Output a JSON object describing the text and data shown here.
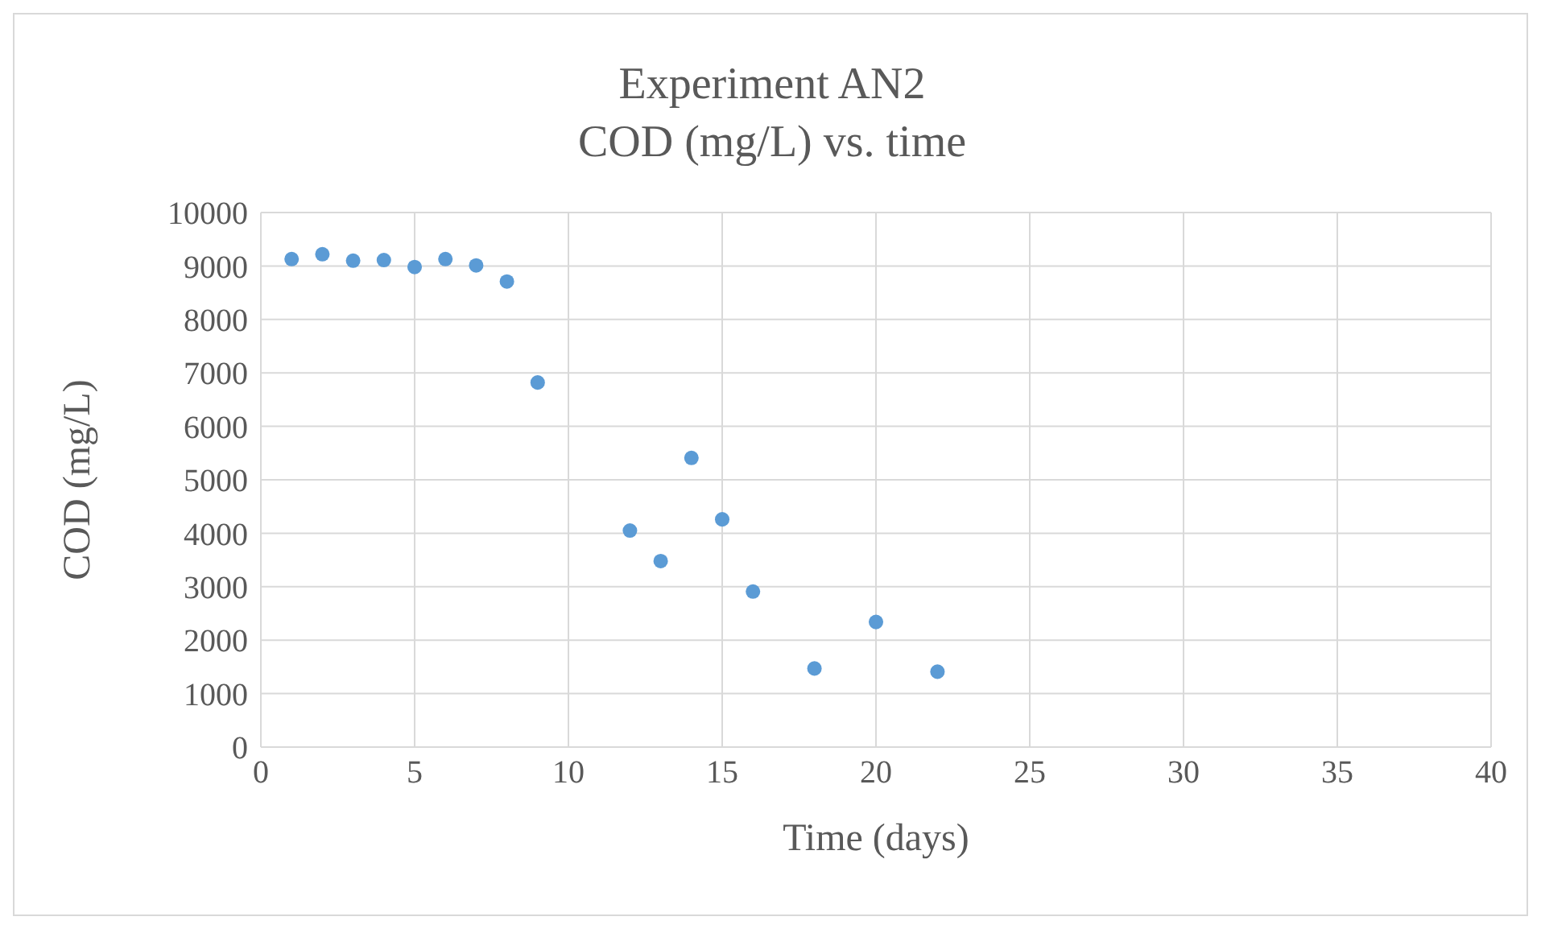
{
  "chart_data": {
    "type": "scatter",
    "title": "Experiment AN2",
    "subtitle": "COD (mg/L) vs. time",
    "xlabel": "Time (days)",
    "ylabel": "COD (mg/L)",
    "x": [
      1,
      2,
      3,
      4,
      5,
      6,
      7,
      8,
      9,
      12,
      13,
      14,
      15,
      16,
      18,
      20,
      22
    ],
    "series": [
      {
        "color": "#5b9bd5",
        "values": [
          9130,
          9220,
          9100,
          9110,
          8980,
          9130,
          9010,
          8710,
          6820,
          4050,
          3480,
          5410,
          4260,
          2910,
          1470,
          2340,
          1410
        ]
      }
    ],
    "xlim": [
      0,
      40
    ],
    "xticks": [
      0,
      5,
      10,
      15,
      20,
      25,
      30,
      35,
      40
    ],
    "ylim": [
      0,
      10000
    ],
    "yticks": [
      0,
      1000,
      2000,
      3000,
      4000,
      5000,
      6000,
      7000,
      8000,
      9000,
      10000
    ],
    "grid": true,
    "marker": "circle"
  }
}
